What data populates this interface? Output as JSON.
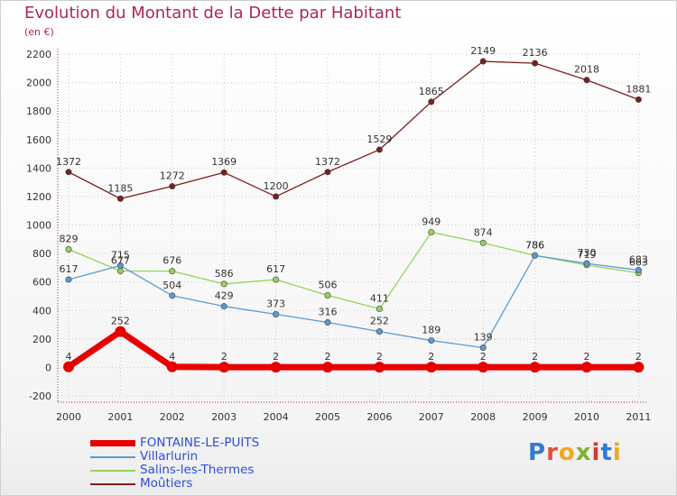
{
  "title": "Evolution du Montant de la Dette par Habitant",
  "unit": "(en €)",
  "brand": {
    "letters": [
      "P",
      "r",
      "o",
      "x",
      "i",
      "t",
      "i"
    ],
    "colors": [
      "#2f7bd6",
      "#e3503a",
      "#f2a524",
      "#7ab52f",
      "#d63b2f",
      "#2f7bd6",
      "#f2a524"
    ]
  },
  "chart_data": {
    "type": "line",
    "x": [
      "2000",
      "2001",
      "2002",
      "2003",
      "2004",
      "2005",
      "2006",
      "2007",
      "2008",
      "2009",
      "2010",
      "2011"
    ],
    "ylim": [
      -200,
      2200
    ],
    "yticks": [
      "2200",
      "2000",
      "1800",
      "1600",
      "1400",
      "1200",
      "1000",
      "800",
      "600",
      "400",
      "200",
      "0",
      "-200"
    ],
    "legend_position": "bottom-left",
    "series": [
      {
        "name": "FONTAINE-LE-PUITS",
        "color": "#e60000",
        "values": [
          4,
          252,
          4,
          2,
          2,
          2,
          2,
          2,
          2,
          2,
          2,
          2
        ],
        "labels": [
          "4",
          "252",
          "4",
          "2",
          "2",
          "2",
          "2",
          "2",
          "2",
          "2",
          "2",
          "2"
        ]
      },
      {
        "name": "Villarlurin",
        "color": "#5a9bd5",
        "values": [
          617,
          715,
          504,
          429,
          373,
          316,
          252,
          189,
          139,
          786,
          730,
          683
        ],
        "labels": [
          "617",
          "715",
          "504",
          "429",
          "373",
          "316",
          "252",
          "189",
          "139",
          "786",
          "730",
          "683"
        ]
      },
      {
        "name": "Salins-les-Thermes",
        "color": "#93d35a",
        "values": [
          829,
          677,
          676,
          586,
          617,
          506,
          411,
          949,
          874,
          786,
          719,
          663
        ],
        "labels": [
          "829",
          "677",
          "676",
          "586",
          "617",
          "506",
          "411",
          "949",
          "874",
          "786",
          "719",
          "663"
        ]
      },
      {
        "name": "Moûtiers",
        "color": "#7a1f1f",
        "values": [
          1372,
          1185,
          1272,
          1369,
          1200,
          1372,
          1529,
          1865,
          2149,
          2136,
          2018,
          1881
        ],
        "labels": [
          "1372",
          "1185",
          "1272",
          "1369",
          "1200",
          "1372",
          "1529",
          "1865",
          "2149",
          "2136",
          "2018",
          "1881"
        ]
      }
    ]
  }
}
